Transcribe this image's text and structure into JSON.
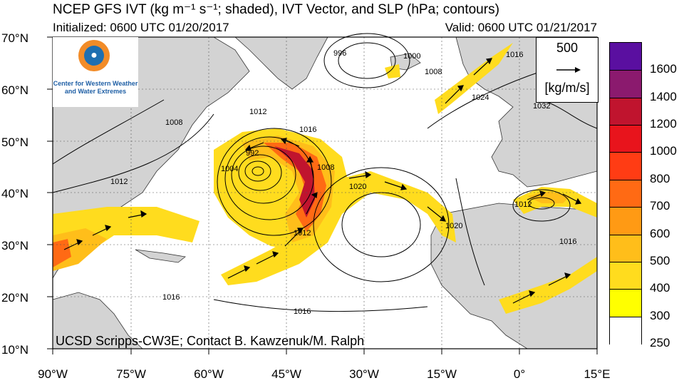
{
  "header": {
    "title": "NCEP GFS IVT (kg m⁻¹ s⁻¹; shaded), IVT Vector, and SLP (hPa; contours)",
    "initialized": "Initialized: 0600 UTC 01/20/2017",
    "valid": "Valid: 0600 UTC 01/21/2017"
  },
  "map": {
    "lat_labels": [
      "70°N",
      "60°N",
      "50°N",
      "40°N",
      "30°N",
      "20°N",
      "10°N"
    ],
    "lon_labels": [
      "90°W",
      "75°W",
      "60°W",
      "45°W",
      "30°W",
      "15°W",
      "0°",
      "15°E"
    ],
    "contour_labels": [
      "996",
      "1000",
      "1008",
      "1016",
      "1024",
      "1032",
      "1012",
      "1008",
      "1004",
      "992",
      "1008",
      "1012",
      "1020",
      "1020",
      "1016",
      "1012",
      "1016",
      "1016",
      "1016",
      "1012"
    ],
    "land_color": "#d3d3d3",
    "ocean_color": "#ffffff"
  },
  "vector_legend": {
    "magnitude": "500",
    "unit": "[kg/m/s]"
  },
  "logo": {
    "text": "Center for Western Weather and Water Extremes"
  },
  "colorbar": {
    "levels": [
      "1600",
      "1400",
      "1200",
      "1000",
      "800",
      "700",
      "600",
      "500",
      "400",
      "300",
      "250"
    ],
    "colors": [
      "#5a0fa0",
      "#8b1a6e",
      "#c0142e",
      "#e8141c",
      "#ff3c14",
      "#ff6a14",
      "#ff9a14",
      "#ffbe1a",
      "#ffdc1e",
      "#ffff00",
      "#ffffff"
    ]
  },
  "footer": {
    "credit": "UCSD Scripps-CW3E; Contact B. Kawzenuk/M. Ralph"
  }
}
